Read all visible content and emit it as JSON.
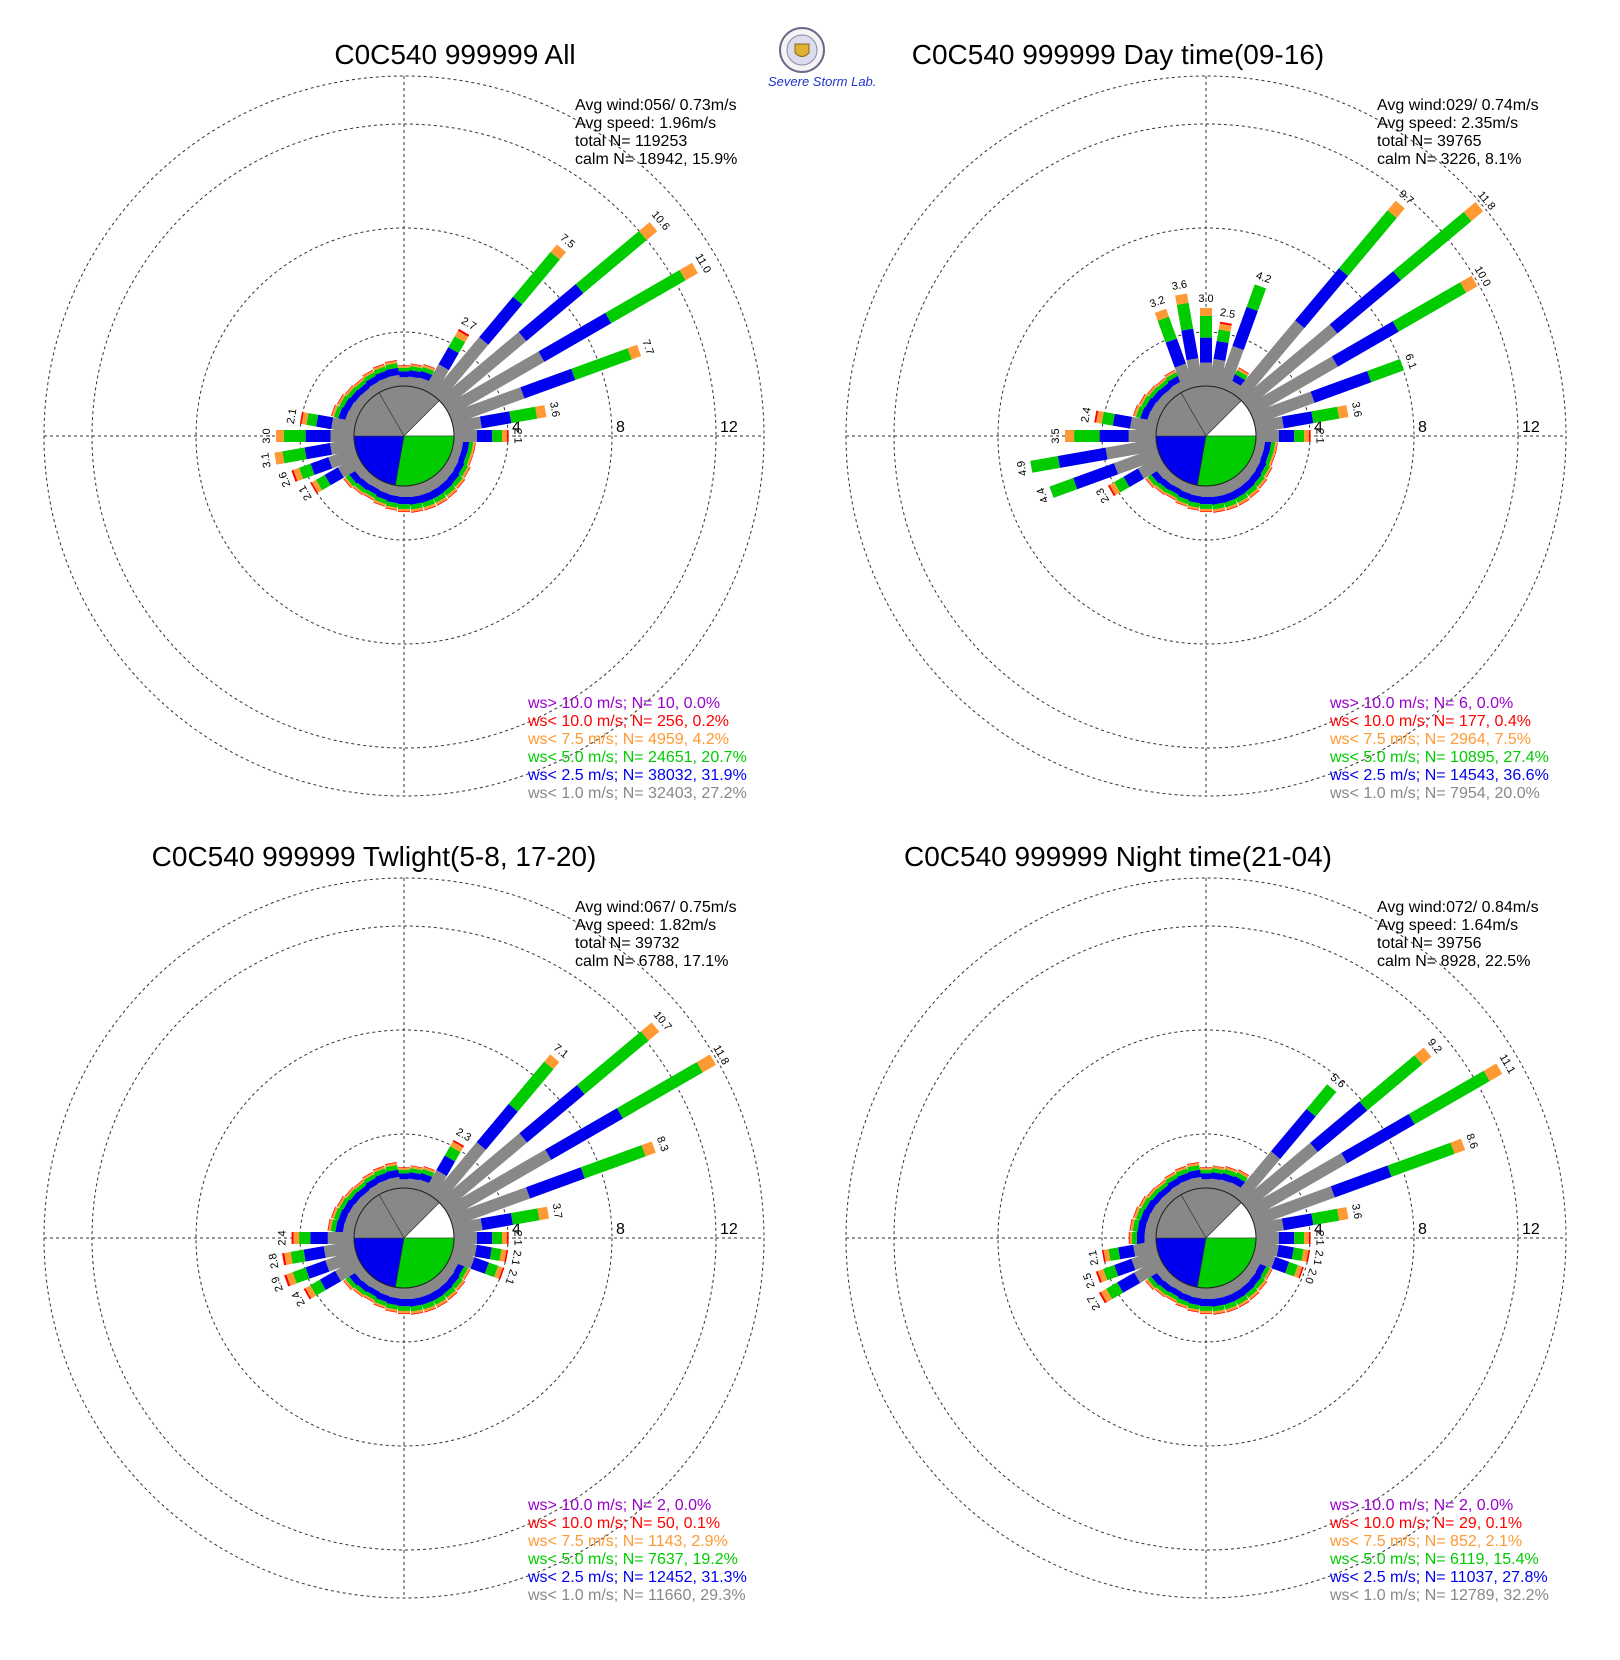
{
  "logo": {
    "text": "Severe Storm Lab."
  },
  "chart_data": [
    {
      "type": "wind-rose",
      "title": "C0C540 999999 All",
      "stats": [
        "Avg wind:056/ 0.73m/s",
        "Avg speed: 1.96m/s",
        "total N=      119253",
        "calm N=   18942,  15.9%"
      ],
      "rings": [
        4,
        8,
        12
      ],
      "legend": [
        {
          "text": "ws> 10.0 m/s; N=    10,  0.0%",
          "color": "#9900cc"
        },
        {
          "text": "ws< 10.0 m/s; N=   256,  0.2%",
          "color": "#ff0000"
        },
        {
          "text": "ws<  7.5 m/s; N=  4959,  4.2%",
          "color": "#ff9933"
        },
        {
          "text": "ws<  5.0 m/s; N= 24651, 20.7%",
          "color": "#00cc00"
        },
        {
          "text": "ws<  2.5 m/s; N= 38032, 31.9%",
          "color": "#0000ee"
        },
        {
          "text": "ws<  1.0 m/s; N= 32403, 27.2%",
          "color": "#888888"
        }
      ],
      "spokes": [
        {
          "dir": 30,
          "total": 2.7,
          "label": "2.7"
        },
        {
          "dir": 40,
          "total": 7.5,
          "label": "7.5"
        },
        {
          "dir": 50,
          "total": 10.6,
          "label": "10.6"
        },
        {
          "dir": 60,
          "total": 11.0,
          "label": "11.0"
        },
        {
          "dir": 70,
          "total": 7.7,
          "label": "7.7"
        },
        {
          "dir": 80,
          "total": 3.6,
          "label": "3.6"
        },
        {
          "dir": 90,
          "total": 2.1,
          "label": "2.1"
        },
        {
          "dir": 240,
          "total": 2.1,
          "label": "2.1"
        },
        {
          "dir": 250,
          "total": 2.6,
          "label": "2.6"
        },
        {
          "dir": 260,
          "total": 3.1,
          "label": "3.1"
        },
        {
          "dir": 270,
          "total": 3.0,
          "label": "3.0"
        },
        {
          "dir": 280,
          "total": 2.1,
          "label": "2.1"
        }
      ]
    },
    {
      "type": "wind-rose",
      "title": "C0C540 999999 Day time(09-16)",
      "stats": [
        "Avg wind:029/ 0.74m/s",
        "Avg speed: 2.35m/s",
        "total N=      39765",
        "calm N=   3226,   8.1%"
      ],
      "rings": [
        4,
        8,
        12
      ],
      "legend": [
        {
          "text": "ws> 10.0 m/s; N=     6,  0.0%",
          "color": "#9900cc"
        },
        {
          "text": "ws< 10.0 m/s; N=   177,  0.4%",
          "color": "#ff0000"
        },
        {
          "text": "ws<  7.5 m/s; N=  2964,  7.5%",
          "color": "#ff9933"
        },
        {
          "text": "ws<  5.0 m/s; N= 10895, 27.4%",
          "color": "#00cc00"
        },
        {
          "text": "ws<  2.5 m/s; N= 14543, 36.6%",
          "color": "#0000ee"
        },
        {
          "text": "ws<  1.0 m/s; N=  7954, 20.0%",
          "color": "#888888"
        }
      ],
      "spokes": [
        {
          "dir": 340,
          "total": 3.2,
          "label": "3.2"
        },
        {
          "dir": 350,
          "total": 3.6,
          "label": "3.6"
        },
        {
          "dir": 0,
          "total": 3.0,
          "label": "3.0"
        },
        {
          "dir": 10,
          "total": 2.5,
          "label": "2.5"
        },
        {
          "dir": 20,
          "total": 4.2,
          "label": "4.2"
        },
        {
          "dir": 40,
          "total": 9.7,
          "label": "9.7"
        },
        {
          "dir": 50,
          "total": 11.8,
          "label": "11.8"
        },
        {
          "dir": 60,
          "total": 10.0,
          "label": "10.0"
        },
        {
          "dir": 70,
          "total": 6.1,
          "label": "6.1"
        },
        {
          "dir": 80,
          "total": 3.6,
          "label": "3.6"
        },
        {
          "dir": 90,
          "total": 2.1,
          "label": "2.1"
        },
        {
          "dir": 240,
          "total": 2.3,
          "label": "2.3"
        },
        {
          "dir": 250,
          "total": 4.4,
          "label": "4.4"
        },
        {
          "dir": 260,
          "total": 4.9,
          "label": "4.9"
        },
        {
          "dir": 270,
          "total": 3.5,
          "label": "3.5"
        },
        {
          "dir": 280,
          "total": 2.4,
          "label": "2.4"
        }
      ]
    },
    {
      "type": "wind-rose",
      "title": "C0C540 999999 Twlight(5-8, 17-20)",
      "stats": [
        "Avg wind:067/ 0.75m/s",
        "Avg speed: 1.82m/s",
        "total N=      39732",
        "calm N=   6788,  17.1%"
      ],
      "rings": [
        4,
        8,
        12
      ],
      "legend": [
        {
          "text": "ws> 10.0 m/s; N=     2,  0.0%",
          "color": "#9900cc"
        },
        {
          "text": "ws< 10.0 m/s; N=    50,  0.1%",
          "color": "#ff0000"
        },
        {
          "text": "ws<  7.5 m/s; N=  1143,  2.9%",
          "color": "#ff9933"
        },
        {
          "text": "ws<  5.0 m/s; N=  7637, 19.2%",
          "color": "#00cc00"
        },
        {
          "text": "ws<  2.5 m/s; N= 12452, 31.3%",
          "color": "#0000ee"
        },
        {
          "text": "ws<  1.0 m/s; N= 11660, 29.3%",
          "color": "#888888"
        }
      ],
      "spokes": [
        {
          "dir": 30,
          "total": 2.3,
          "label": "2.3"
        },
        {
          "dir": 40,
          "total": 7.1,
          "label": "7.1"
        },
        {
          "dir": 50,
          "total": 10.7,
          "label": "10.7"
        },
        {
          "dir": 60,
          "total": 11.8,
          "label": "11.8"
        },
        {
          "dir": 70,
          "total": 8.3,
          "label": "8.3"
        },
        {
          "dir": 80,
          "total": 3.7,
          "label": "3.7"
        },
        {
          "dir": 90,
          "total": 2.1,
          "label": "2.1"
        },
        {
          "dir": 100,
          "total": 2.1,
          "label": "2.1"
        },
        {
          "dir": 110,
          "total": 2.1,
          "label": "2.1"
        },
        {
          "dir": 240,
          "total": 2.4,
          "label": "2.4"
        },
        {
          "dir": 250,
          "total": 2.9,
          "label": "2.9"
        },
        {
          "dir": 260,
          "total": 2.8,
          "label": "2.8"
        },
        {
          "dir": 270,
          "total": 2.4,
          "label": "2.4"
        }
      ]
    },
    {
      "type": "wind-rose",
      "title": "C0C540 999999 Night time(21-04)",
      "stats": [
        "Avg wind:072/ 0.84m/s",
        "Avg speed: 1.64m/s",
        "total N=      39756",
        "calm N=   8928,  22.5%"
      ],
      "rings": [
        4,
        8,
        12
      ],
      "legend": [
        {
          "text": "ws> 10.0 m/s; N=     2,  0.0%",
          "color": "#9900cc"
        },
        {
          "text": "ws< 10.0 m/s; N=    29,  0.1%",
          "color": "#ff0000"
        },
        {
          "text": "ws<  7.5 m/s; N=   852,  2.1%",
          "color": "#ff9933"
        },
        {
          "text": "ws<  5.0 m/s; N=  6119, 15.4%",
          "color": "#00cc00"
        },
        {
          "text": "ws<  2.5 m/s; N= 11037, 27.8%",
          "color": "#0000ee"
        },
        {
          "text": "ws<  1.0 m/s; N= 12789, 32.2%",
          "color": "#888888"
        }
      ],
      "spokes": [
        {
          "dir": 40,
          "total": 5.6,
          "label": "5.6"
        },
        {
          "dir": 50,
          "total": 9.2,
          "label": "9.2"
        },
        {
          "dir": 60,
          "total": 11.1,
          "label": "11.1"
        },
        {
          "dir": 70,
          "total": 8.6,
          "label": "8.6"
        },
        {
          "dir": 80,
          "total": 3.6,
          "label": "3.6"
        },
        {
          "dir": 90,
          "total": 2.1,
          "label": "2.1"
        },
        {
          "dir": 100,
          "total": 2.1,
          "label": "2.1"
        },
        {
          "dir": 110,
          "total": 2.0,
          "label": "2.0"
        },
        {
          "dir": 240,
          "total": 2.7,
          "label": "2.7"
        },
        {
          "dir": 250,
          "total": 2.5,
          "label": "2.5"
        },
        {
          "dir": 260,
          "total": 2.1,
          "label": "2.1"
        }
      ]
    }
  ]
}
